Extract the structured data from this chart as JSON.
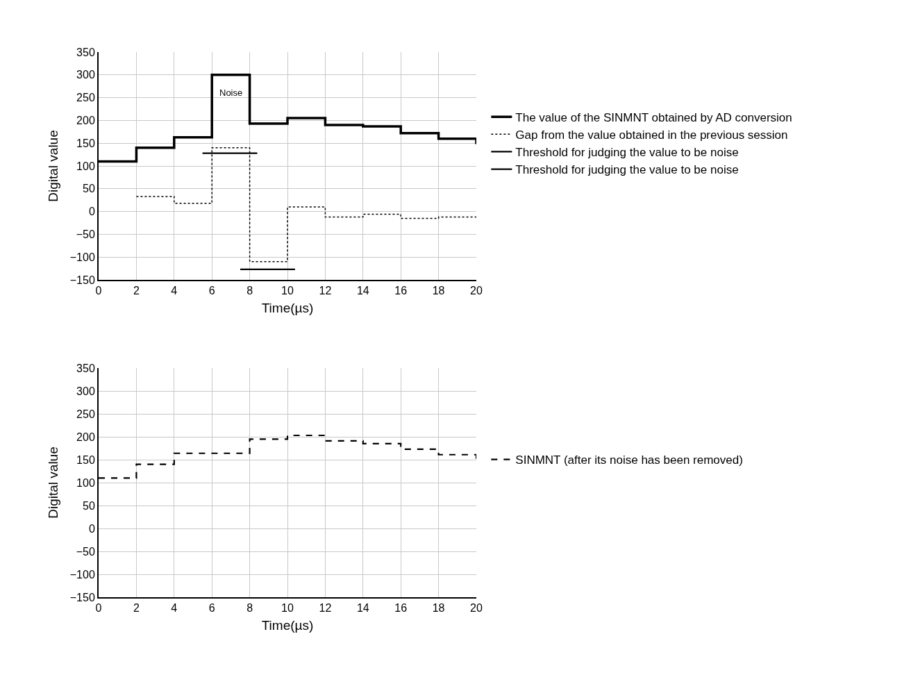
{
  "chart_data": [
    {
      "type": "step",
      "xlabel": "Time(µs)",
      "ylabel": "Digital value",
      "xlim": [
        0,
        20
      ],
      "xticks": [
        0,
        2,
        4,
        6,
        8,
        10,
        12,
        14,
        16,
        18,
        20
      ],
      "ylim": [
        -150,
        350
      ],
      "yticks": [
        {
          "value": -150,
          "label": "−150"
        },
        {
          "value": -100,
          "label": "−100"
        },
        {
          "value": -50,
          "label": "−50"
        },
        0,
        50,
        100,
        150,
        200,
        250,
        300,
        350
      ],
      "grid": true,
      "legend": "right",
      "annotations": [
        "Noise"
      ],
      "series": [
        {
          "name": "The value of the SINMNT obtained by AD conversion",
          "color": "#000000",
          "line_style": "solid",
          "x": [
            0,
            2,
            4,
            6,
            8,
            10,
            12,
            14,
            16,
            18,
            20
          ],
          "values": [
            110,
            140,
            163,
            300,
            193,
            205,
            190,
            187,
            172,
            160,
            148
          ]
        },
        {
          "name": "Gap from the value obtained in the previous session",
          "color": "#000000",
          "line_style": "dotted",
          "x": [
            2,
            4,
            6,
            8,
            10,
            12,
            14,
            16,
            18,
            20
          ],
          "values": [
            33,
            18,
            140,
            -110,
            10,
            -12,
            -6,
            -15,
            -12,
            -12
          ]
        },
        {
          "name": "Threshold for judging the value to be noise",
          "type": "line",
          "color": "#000000",
          "line_style": "solid",
          "x": [
            5.5,
            8.4
          ],
          "values": [
            128,
            128
          ]
        },
        {
          "name": "Threshold for judging the value to be noise",
          "type": "line",
          "color": "#000000",
          "line_style": "solid",
          "x": [
            7.5,
            10.4
          ],
          "values": [
            -127,
            -127
          ]
        }
      ]
    },
    {
      "type": "step",
      "xlabel": "Time(µs)",
      "ylabel": "Digital value",
      "xlim": [
        0,
        20
      ],
      "xticks": [
        0,
        2,
        4,
        6,
        8,
        10,
        12,
        14,
        16,
        18,
        20
      ],
      "ylim": [
        -150,
        350
      ],
      "yticks": [
        {
          "value": -150,
          "label": "−150"
        },
        {
          "value": -100,
          "label": "−100"
        },
        {
          "value": -50,
          "label": "−50"
        },
        0,
        50,
        100,
        150,
        200,
        250,
        300,
        350
      ],
      "grid": true,
      "legend": "right",
      "series": [
        {
          "name": "SINMNT (after its noise has been removed)",
          "color": "#000000",
          "line_style": "dashed",
          "x": [
            0,
            2,
            4,
            6,
            8,
            10,
            12,
            14,
            16,
            18,
            20
          ],
          "values": [
            110,
            140,
            164,
            164,
            195,
            203,
            191,
            185,
            173,
            161,
            150
          ]
        }
      ]
    }
  ]
}
